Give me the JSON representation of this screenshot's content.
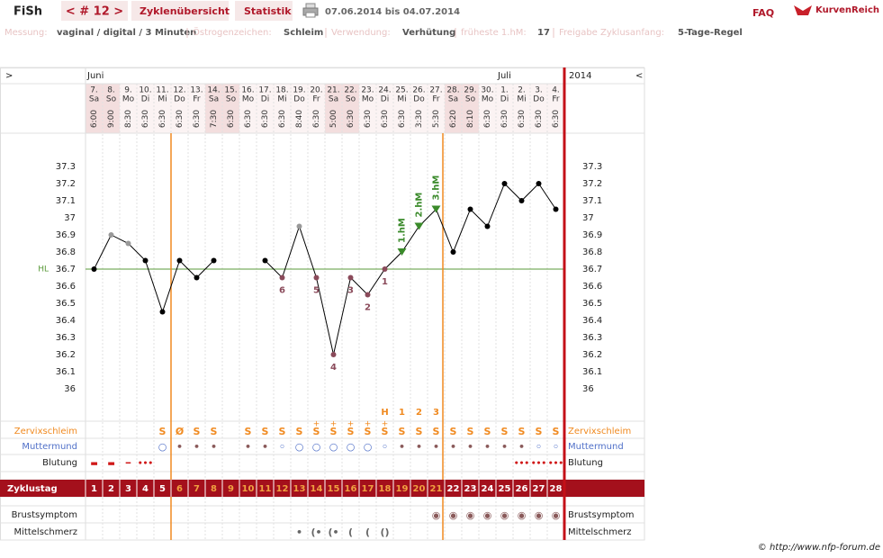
{
  "header": {
    "app": "FiSh",
    "cycle_nav": "< # 12 >",
    "tabs": [
      "Zyklenübersicht",
      "Statistik"
    ],
    "date_range": "07.06.2014 bis 04.07.2014",
    "faq": "FAQ",
    "logo": "KurvenReich"
  },
  "info": [
    {
      "label": "Messung:",
      "value": "vaginal / digital / 3 Minuten"
    },
    {
      "label": "Östrogenzeichen:",
      "value": "Schleim"
    },
    {
      "label": "Verwendung:",
      "value": "Verhütung"
    },
    {
      "label": "früheste 1.hM:",
      "value": 17
    },
    {
      "label": "Freigabe Zyklusanfang:",
      "value": "5-Tage-Regel"
    }
  ],
  "calendar": {
    "nav_left": ">",
    "nav_right": "<",
    "year": "2014",
    "months": [
      "Juni",
      null,
      null,
      null,
      null,
      null,
      null,
      null,
      null,
      null,
      null,
      null,
      null,
      null,
      null,
      null,
      null,
      null,
      null,
      null,
      null,
      null,
      null,
      null,
      "Juli",
      null,
      null,
      null
    ],
    "dates": [
      "7.",
      "8.",
      "9.",
      "10.",
      "11.",
      "12.",
      "13.",
      "14.",
      "15.",
      "16.",
      "17.",
      "18.",
      "19.",
      "20.",
      "21.",
      "22.",
      "23.",
      "24.",
      "25.",
      "26.",
      "27.",
      "28.",
      "29.",
      "30.",
      "1.",
      "2.",
      "3.",
      "4."
    ],
    "weekdays": [
      "Sa",
      "So",
      "Mo",
      "Di",
      "Mi",
      "Do",
      "Fr",
      "Sa",
      "So",
      "Mo",
      "Di",
      "Mi",
      "Do",
      "Fr",
      "Sa",
      "So",
      "Mo",
      "Di",
      "Mi",
      "Do",
      "Fr",
      "Sa",
      "So",
      "Mo",
      "Di",
      "Mi",
      "Do",
      "Fr"
    ],
    "times": [
      "6:00",
      "9:00",
      "8:30",
      "6:30",
      "6:30",
      "6:30",
      "6:30",
      "7:30",
      "6:30",
      "6:30",
      "6:30",
      "6:30",
      "8:40",
      "6:30",
      "5:00",
      "6:30",
      "6:30",
      "6:30",
      "6:30",
      "3:30",
      "5:30",
      "6:20",
      "8:10",
      "6:30",
      "6:30",
      "6:30",
      "6:30",
      "6:30"
    ]
  },
  "chart_data": {
    "type": "line",
    "x_label": "Zyklustag",
    "x": [
      1,
      2,
      3,
      4,
      5,
      6,
      7,
      8,
      9,
      10,
      11,
      12,
      13,
      14,
      15,
      16,
      17,
      18,
      19,
      20,
      21,
      22,
      23,
      24,
      25,
      26,
      27,
      28
    ],
    "values": [
      36.7,
      36.9,
      36.85,
      36.75,
      36.45,
      36.75,
      36.65,
      36.75,
      null,
      null,
      36.75,
      36.65,
      36.95,
      36.65,
      36.2,
      36.65,
      36.55,
      36.7,
      36.8,
      36.95,
      37.05,
      36.8,
      37.05,
      36.95,
      37.2,
      37.1,
      37.2,
      37.05
    ],
    "point_colors": [
      "#000",
      "#999",
      "#999",
      "#000",
      "#000",
      "#000",
      "#000",
      "#000",
      null,
      null,
      "#000",
      "#8a4a5a",
      "#999",
      "#8a4a5a",
      "#8a4a5a",
      "#8a4a5a",
      "#8a4a5a",
      "#8a4a5a",
      "#3a8a2a",
      "#3a8a2a",
      "#3a8a2a",
      "#000",
      "#000",
      "#000",
      "#000",
      "#000",
      "#000",
      "#000"
    ],
    "point_labels": [
      null,
      null,
      null,
      null,
      null,
      null,
      null,
      null,
      null,
      null,
      null,
      6,
      null,
      5,
      4,
      3,
      2,
      1,
      null,
      null,
      null,
      null,
      null,
      null,
      null,
      null,
      null,
      null
    ],
    "peak_labels": [
      null,
      null,
      null,
      null,
      null,
      null,
      null,
      null,
      null,
      null,
      null,
      null,
      null,
      null,
      null,
      null,
      null,
      null,
      "1.hM",
      "2.hM",
      "3.hM",
      null,
      null,
      null,
      null,
      null,
      null,
      null
    ],
    "day_number_colors": [
      "#fff",
      "#fff",
      "#fff",
      "#fff",
      "#fff",
      "#f0a040",
      "#f0a040",
      "#f0a040",
      "#f0a040",
      "#f0a040",
      "#f0a040",
      "#f0a040",
      "#f0a040",
      "#f0a040",
      "#f0a040",
      "#f0a040",
      "#f0a040",
      "#f0a040",
      "#f0a040",
      "#f0a040",
      "#f0a040",
      "#fff",
      "#fff",
      "#fff",
      "#fff",
      "#fff",
      "#fff",
      "#fff"
    ],
    "line_color": "#000",
    "hl": {
      "value": 36.7,
      "label": "HL",
      "color": "#5a9a3a"
    },
    "ylim": [
      35.8,
      37.5
    ],
    "yticks": [
      36,
      36.1,
      36.2,
      36.3,
      36.4,
      36.5,
      36.6,
      36.7,
      36.8,
      36.9,
      37,
      37.1,
      37.2,
      37.3
    ]
  },
  "rows": {
    "peak_marks": [
      null,
      null,
      null,
      null,
      null,
      null,
      null,
      null,
      null,
      null,
      null,
      null,
      null,
      null,
      null,
      null,
      null,
      "H",
      1,
      2,
      3,
      null,
      null,
      null,
      null,
      null,
      null,
      null
    ],
    "zervixschleim": {
      "label": "Zervixschleim",
      "values": [
        null,
        null,
        null,
        null,
        "S",
        "Ø",
        "S",
        "S",
        null,
        "S",
        "S",
        "S",
        "S",
        "S",
        "S",
        "S",
        "S",
        "S",
        "S",
        "S",
        "S",
        "S",
        "S",
        "S",
        "S",
        "S",
        "S",
        "S"
      ],
      "plus": [
        null,
        null,
        null,
        null,
        null,
        null,
        null,
        null,
        null,
        null,
        null,
        null,
        null,
        "+",
        "+",
        "+",
        "+",
        "+",
        null,
        null,
        null,
        null,
        null,
        null,
        null,
        null,
        null,
        null
      ]
    },
    "muttermund": {
      "label": "Muttermund",
      "values": [
        null,
        null,
        null,
        null,
        "○",
        "•",
        "•",
        "•",
        null,
        "•",
        "•",
        "◦",
        "○",
        "○",
        "○",
        "○",
        "○",
        "◦",
        "•",
        "•",
        "•",
        "•",
        "•",
        "•",
        "•",
        "•",
        "◦",
        "◦"
      ]
    },
    "blutung": {
      "label": "Blutung",
      "values": [
        "▬",
        "▬",
        "━",
        "•••",
        null,
        null,
        null,
        null,
        null,
        null,
        null,
        null,
        null,
        null,
        null,
        null,
        null,
        null,
        null,
        null,
        null,
        null,
        null,
        null,
        null,
        "•••",
        "•••",
        "•••"
      ]
    },
    "brustsymptom": {
      "label": "Brustsymptom",
      "values": [
        null,
        null,
        null,
        null,
        null,
        null,
        null,
        null,
        null,
        null,
        null,
        null,
        null,
        null,
        null,
        null,
        null,
        null,
        null,
        null,
        "◉",
        "◉",
        "◉",
        "◉",
        "◉",
        "◉",
        "◉",
        "◉"
      ]
    },
    "mittelschmerz": {
      "label": "Mittelschmerz",
      "values": [
        null,
        null,
        null,
        null,
        null,
        null,
        null,
        null,
        null,
        null,
        null,
        null,
        "•",
        "(•",
        "(•",
        "(",
        "(",
        "()",
        null,
        null,
        null,
        null,
        null,
        null,
        null,
        null,
        null,
        null
      ]
    }
  },
  "footer": "© http://www.nfp-forum.de"
}
